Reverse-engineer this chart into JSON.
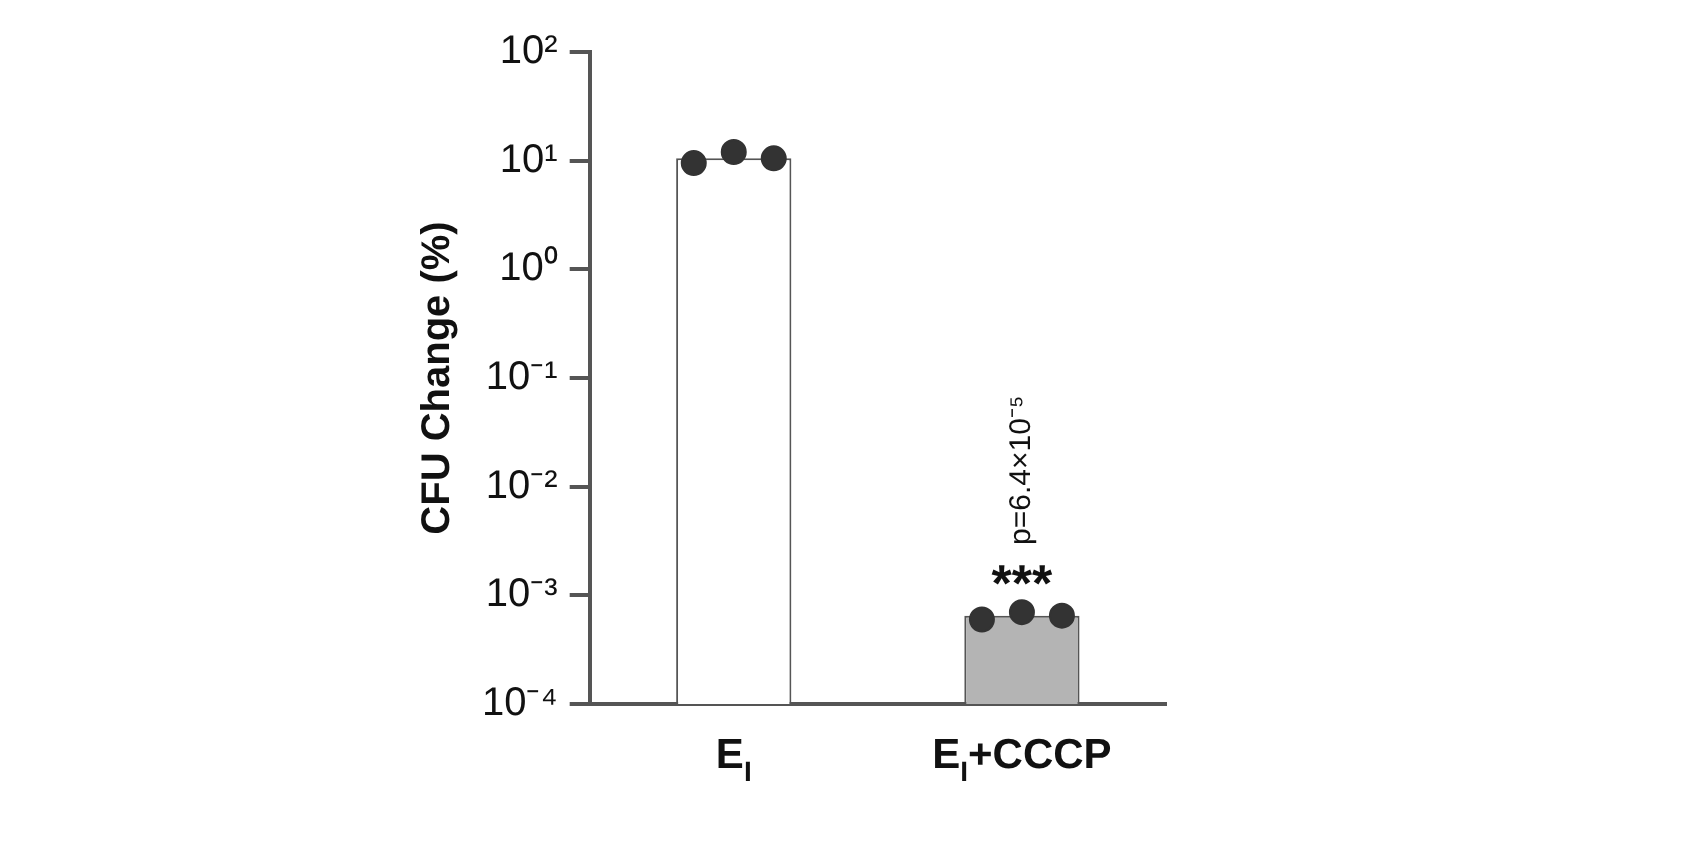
{
  "chart_data": {
    "type": "bar",
    "ylabel": "CFU Change (%)",
    "categories": [
      "E$_{I}$",
      "E$_{I}$+CCCP"
    ],
    "series": [
      {
        "colors": [
          "#ffffff",
          "#b4b4b4"
        ],
        "values": [
          10.5,
          0.00065
        ]
      },
      {
        "type": "scatter",
        "color": "#333333",
        "x": [
          "E$_{I}$",
          "E$_{I}$",
          "E$_{I}$",
          "E$_{I}$+CCCP",
          "E$_{I}$+CCCP",
          "E$_{I}$+CCCP"
        ],
        "values": [
          9.5,
          12,
          10.5,
          0.0006,
          0.0007,
          0.00065
        ]
      }
    ],
    "log": true,
    "ylim": [
      0.0001,
      100
    ],
    "yticks": [
      {
        "value": 0.0001,
        "label": "10⁻⁴"
      },
      {
        "value": 0.001,
        "label": "10⁻³"
      },
      {
        "value": 0.01,
        "label": "10⁻²"
      },
      {
        "value": 0.1,
        "label": "10⁻¹"
      },
      {
        "value": 1,
        "label": "10⁰"
      },
      {
        "value": 10,
        "label": "10¹"
      },
      {
        "value": 100,
        "label": "10²"
      }
    ],
    "grid": false,
    "legend": false,
    "marker": "circle",
    "annotations": [
      {
        "text": "***",
        "x": "E$_{I}$+CCCP",
        "y": 0.00075
      },
      "p=6.4×10⁻⁵"
    ]
  }
}
